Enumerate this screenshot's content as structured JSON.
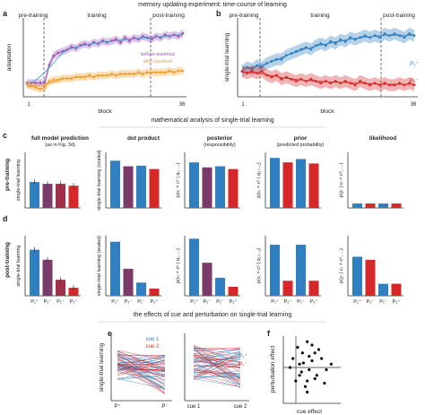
{
  "section_titles": {
    "top": "memory updating experiment: time-course of learning",
    "middle": "mathematical analysis of single-trial learning",
    "bottom": "the effects of cue and perturbation on single-trial learning"
  },
  "panel_letters": [
    "a",
    "b",
    "c",
    "d",
    "e",
    "f"
  ],
  "colors": {
    "purple": "#9b59b6",
    "orange": "#f0a030",
    "blue": "#2f7fc1",
    "red": "#d62828",
    "dark_purple": "#7a3b6a",
    "dark_red": "#a0304a",
    "model_line": "#29a0c8"
  },
  "panel_a": {
    "ylabel": "adaptation",
    "xlabel": "block",
    "phases": [
      "pre-training",
      "training",
      "post-training"
    ],
    "x_ticks": [
      "1",
      "36"
    ],
    "legend": [
      "before washout",
      "after washout"
    ]
  },
  "panel_b": {
    "ylabel": "single-trial learning",
    "xlabel": "block",
    "phases": [
      "pre-training",
      "training",
      "post-training"
    ],
    "x_ticks": [
      "1",
      "36"
    ],
    "series_labels": [
      "P₁⁺",
      "P₂⁻"
    ]
  },
  "row_labels": [
    "pre-training",
    "post-training"
  ],
  "column_titles": [
    {
      "title": "full model prediction",
      "sub": "(as in Fig. 3d)"
    },
    {
      "title": "dot product",
      "sub": ""
    },
    {
      "title": "posterior",
      "sub": "(responsibility)"
    },
    {
      "title": "prior",
      "sub": "(predicted probability)"
    },
    {
      "title": "likelihood",
      "sub": ""
    }
  ],
  "column_ylabels": [
    "single-trial learning",
    "single-trial learning (scaled)",
    "p(cₜ = cᵉ | qₜ, ...)",
    "p(cₜ = cᵉ | q₁:ₜ₋₁)",
    "p(yₜ | cₜ = cᵉ, ...)"
  ],
  "bar_categories": [
    "P₁⁺",
    "P₂⁻",
    "P₁⁻",
    "P₂⁺"
  ],
  "panel_e": {
    "ylabel": "single-trial learning",
    "left_ticks": [
      "P⁺",
      "P⁻"
    ],
    "right_ticks": [
      "cue 1",
      "cue 2"
    ],
    "legend_left": [
      "cue 1",
      "cue 2"
    ],
    "legend_right": [
      "P₁⁺",
      "P₂⁻"
    ]
  },
  "panel_f": {
    "ylabel": "perturbation effect",
    "xlabel": "cue effect"
  },
  "chart_data": [
    {
      "type": "line",
      "panel": "a",
      "x": [
        1,
        2,
        3,
        4,
        5,
        6,
        7,
        8,
        9,
        10,
        11,
        12,
        13,
        14,
        15,
        16,
        17,
        18,
        19,
        20,
        21,
        22,
        23,
        24,
        25,
        26,
        27,
        28,
        29,
        30,
        31,
        32,
        33,
        34,
        35,
        36
      ],
      "series": [
        {
          "name": "before washout",
          "values": [
            0,
            0,
            0,
            0,
            0,
            0.12,
            0.18,
            0.2,
            0.21,
            0.22,
            0.24,
            0.23,
            0.25,
            0.26,
            0.25,
            0.27,
            0.26,
            0.28,
            0.27,
            0.28,
            0.29,
            0.27,
            0.3,
            0.28,
            0.3,
            0.29,
            0.31,
            0.3,
            0.29,
            0.31,
            0.3,
            0.32,
            0.31,
            0.32,
            0.31,
            0.33
          ]
        },
        {
          "name": "after washout",
          "values": [
            -0.01,
            -0.02,
            -0.03,
            -0.04,
            -0.03,
            0.01,
            0.02,
            0.02,
            0.03,
            0.03,
            0.03,
            0.04,
            0.04,
            0.04,
            0.05,
            0.04,
            0.05,
            0.05,
            0.05,
            0.06,
            0.05,
            0.06,
            0.06,
            0.06,
            0.06,
            0.07,
            0.06,
            0.07,
            0.07,
            0.07,
            0.07,
            0.07,
            0.08,
            0.07,
            0.08,
            0.08
          ]
        }
      ]
    },
    {
      "type": "line",
      "panel": "b",
      "x": [
        1,
        2,
        3,
        4,
        5,
        6,
        7,
        8,
        9,
        10,
        11,
        12,
        13,
        14,
        15,
        16,
        17,
        18,
        19,
        20,
        21,
        22,
        23,
        24,
        25,
        26,
        27,
        28,
        29,
        30,
        31,
        32,
        33,
        34,
        35,
        36
      ],
      "series": [
        {
          "name": "P₁⁺",
          "values": [
            0.1,
            0.12,
            0.11,
            0.13,
            0.12,
            0.14,
            0.15,
            0.16,
            0.16,
            0.18,
            0.19,
            0.2,
            0.21,
            0.22,
            0.21,
            0.23,
            0.24,
            0.23,
            0.25,
            0.24,
            0.26,
            0.25,
            0.27,
            0.26,
            0.27,
            0.28,
            0.27,
            0.28,
            0.27,
            0.29,
            0.28,
            0.29,
            0.28,
            0.27,
            0.29,
            0.28
          ]
        },
        {
          "name": "P₂⁻",
          "values": [
            0.1,
            0.09,
            0.1,
            0.09,
            0.1,
            0.08,
            0.07,
            0.08,
            0.06,
            0.07,
            0.06,
            0.05,
            0.06,
            0.05,
            0.06,
            0.05,
            0.04,
            0.05,
            0.04,
            0.05,
            0.04,
            0.05,
            0.04,
            0.03,
            0.05,
            0.04,
            0.03,
            0.04,
            0.03,
            0.04,
            0.03,
            0.03,
            0.04,
            0.03,
            0.04,
            0.03
          ]
        }
      ]
    },
    {
      "type": "bar",
      "panel": "c",
      "categories": [
        "P₁⁺",
        "P₂⁻",
        "P₁⁻",
        "P₂⁺"
      ],
      "columns": [
        {
          "name": "full model prediction",
          "values": [
            0.14,
            0.13,
            0.13,
            0.12
          ]
        },
        {
          "name": "dot product",
          "values": [
            0.85,
            0.75,
            0.76,
            0.7
          ]
        },
        {
          "name": "posterior",
          "values": [
            0.82,
            0.73,
            0.75,
            0.7
          ]
        },
        {
          "name": "prior",
          "values": [
            0.9,
            0.82,
            0.88,
            0.8
          ]
        },
        {
          "name": "likelihood",
          "values": [
            0.08,
            0.08,
            0.08,
            0.08
          ]
        }
      ]
    },
    {
      "type": "bar",
      "panel": "d",
      "categories": [
        "P₁⁺",
        "P₂⁻",
        "P₁⁻",
        "P₂⁺"
      ],
      "columns": [
        {
          "name": "full model prediction",
          "values": [
            0.23,
            0.18,
            0.08,
            0.04
          ]
        },
        {
          "name": "dot product",
          "values": [
            0.9,
            0.45,
            0.22,
            0.12
          ]
        },
        {
          "name": "posterior",
          "values": [
            0.95,
            0.55,
            0.3,
            0.15
          ]
        },
        {
          "name": "prior",
          "values": [
            0.85,
            0.25,
            0.85,
            0.25
          ]
        },
        {
          "name": "likelihood",
          "values": [
            0.65,
            0.6,
            0.2,
            0.2
          ]
        }
      ]
    },
    {
      "type": "scatter",
      "panel": "f",
      "x": [
        -0.05,
        0.02,
        0.1,
        0.12,
        0.2,
        -0.02,
        0.05,
        0.15,
        0.3,
        0.08,
        0.0,
        0.18,
        0.25,
        -0.08,
        0.1,
        0.04,
        0.22,
        0.12,
        0.06,
        0.28,
        0.02,
        0.15,
        0.1,
        0.35,
        0.18
      ],
      "y": [
        0.3,
        0.25,
        0.45,
        0.2,
        0.15,
        0.1,
        0.35,
        0.28,
        0.2,
        0.05,
        0.4,
        0.12,
        0.3,
        0.22,
        0.0,
        0.18,
        0.38,
        0.32,
        0.26,
        0.08,
        0.15,
        0.42,
        0.1,
        0.25,
        0.35
      ]
    }
  ]
}
